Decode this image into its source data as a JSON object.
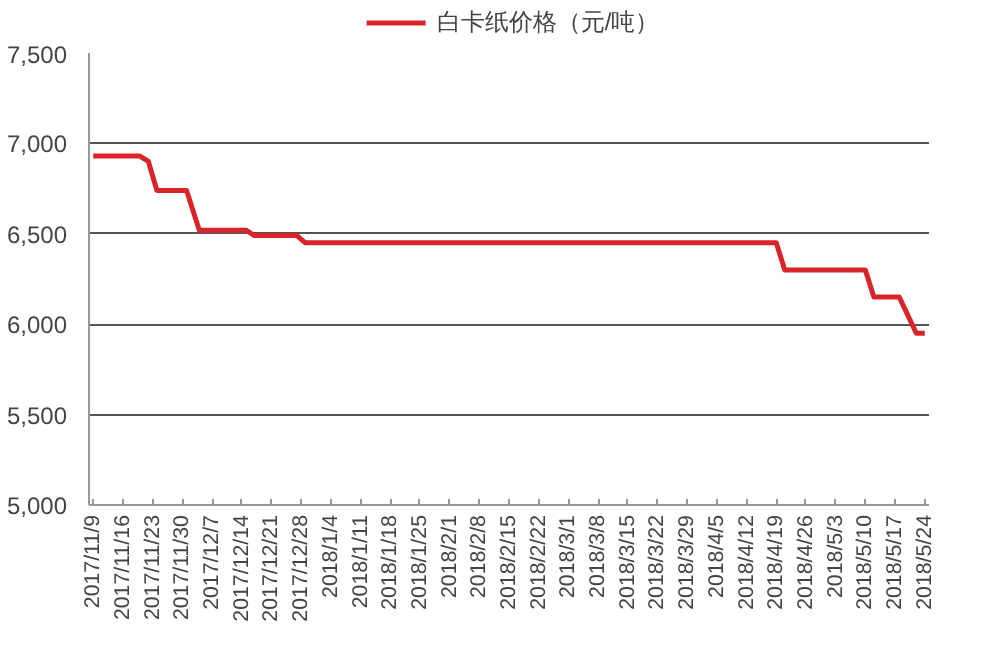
{
  "chart_data": {
    "type": "line",
    "legend": "top",
    "grid": "y",
    "marker": "none",
    "line_style": "solid",
    "series": [
      {
        "name": "白卡纸价格（元/吨）",
        "color": "#d9252a",
        "x": [
          "2017-11-09",
          "2017-11-20",
          "2017-11-22",
          "2017-11-24",
          "2017-12-01",
          "2017-12-04",
          "2017-12-15",
          "2017-12-17",
          "2017-12-27",
          "2017-12-29",
          "2018-04-19",
          "2018-04-21",
          "2018-05-10",
          "2018-05-12",
          "2018-05-18",
          "2018-05-22",
          "2018-05-24"
        ],
        "values": [
          6930,
          6930,
          6900,
          6740,
          6740,
          6520,
          6520,
          6490,
          6490,
          6450,
          6450,
          6300,
          6300,
          6150,
          6150,
          5950,
          5950
        ]
      }
    ],
    "xlim": [
      "2017-11-08",
      "2018-05-25"
    ],
    "xticks": [
      {
        "value": "2017-11-09",
        "label": "2017/11/9"
      },
      {
        "value": "2017-11-16",
        "label": "2017/11/16"
      },
      {
        "value": "2017-11-23",
        "label": "2017/11/23"
      },
      {
        "value": "2017-11-30",
        "label": "2017/11/30"
      },
      {
        "value": "2017-12-07",
        "label": "2017/12/7"
      },
      {
        "value": "2017-12-14",
        "label": "2017/12/14"
      },
      {
        "value": "2017-12-21",
        "label": "2017/12/21"
      },
      {
        "value": "2017-12-28",
        "label": "2017/12/28"
      },
      {
        "value": "2018-01-04",
        "label": "2018/1/4"
      },
      {
        "value": "2018-01-11",
        "label": "2018/1/11"
      },
      {
        "value": "2018-01-18",
        "label": "2018/1/18"
      },
      {
        "value": "2018-01-25",
        "label": "2018/1/25"
      },
      {
        "value": "2018-02-01",
        "label": "2018/2/1"
      },
      {
        "value": "2018-02-08",
        "label": "2018/2/8"
      },
      {
        "value": "2018-02-15",
        "label": "2018/2/15"
      },
      {
        "value": "2018-02-22",
        "label": "2018/2/22"
      },
      {
        "value": "2018-03-01",
        "label": "2018/3/1"
      },
      {
        "value": "2018-03-08",
        "label": "2018/3/8"
      },
      {
        "value": "2018-03-15",
        "label": "2018/3/15"
      },
      {
        "value": "2018-03-22",
        "label": "2018/3/22"
      },
      {
        "value": "2018-03-29",
        "label": "2018/3/29"
      },
      {
        "value": "2018-04-05",
        "label": "2018/4/5"
      },
      {
        "value": "2018-04-12",
        "label": "2018/4/12"
      },
      {
        "value": "2018-04-19",
        "label": "2018/4/19"
      },
      {
        "value": "2018-04-26",
        "label": "2018/4/26"
      },
      {
        "value": "2018-05-03",
        "label": "2018/5/3"
      },
      {
        "value": "2018-05-10",
        "label": "2018/5/10"
      },
      {
        "value": "2018-05-17",
        "label": "2018/5/17"
      },
      {
        "value": "2018-05-24",
        "label": "2018/5/24"
      }
    ],
    "ylim": [
      5000,
      7500
    ],
    "yticks": [
      {
        "value": 5000,
        "label": "5,000"
      },
      {
        "value": 5500,
        "label": "5,500"
      },
      {
        "value": 6000,
        "label": "6,000"
      },
      {
        "value": 6500,
        "label": "6,500"
      },
      {
        "value": 7000,
        "label": "7,000"
      },
      {
        "value": 7500,
        "label": "7,500"
      }
    ]
  }
}
